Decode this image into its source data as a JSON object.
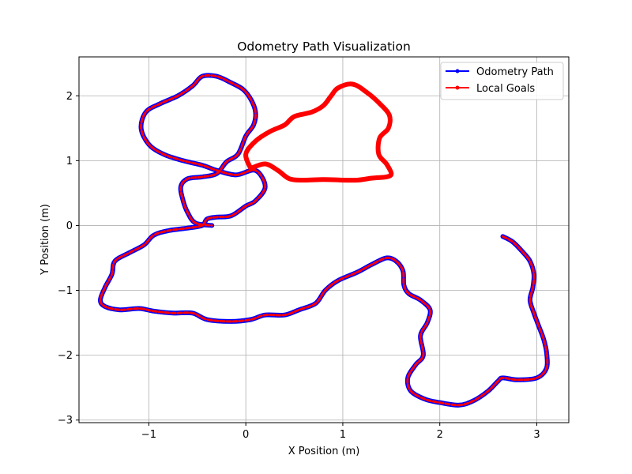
{
  "chart_data": {
    "type": "line",
    "title": "Odometry Path Visualization",
    "xlabel": "X Position (m)",
    "ylabel": "Y Position (m)",
    "xlim": [
      -1.72,
      3.33
    ],
    "ylim": [
      -3.04,
      2.6
    ],
    "xticks": [
      -1,
      0,
      1,
      2,
      3
    ],
    "yticks": [
      -3,
      -2,
      -1,
      0,
      1,
      2
    ],
    "xtick_labels": [
      "−1",
      "0",
      "1",
      "2",
      "3"
    ],
    "ytick_labels": [
      "−3",
      "−2",
      "−1",
      "0",
      "1",
      "2"
    ],
    "grid": true,
    "legend_position": "top-right",
    "series": [
      {
        "name": "Odometry Path",
        "color": "#0000ff",
        "marker": "dot",
        "points": [
          [
            2.65,
            -0.17
          ],
          [
            2.75,
            -0.25
          ],
          [
            2.85,
            -0.4
          ],
          [
            2.93,
            -0.55
          ],
          [
            2.97,
            -0.75
          ],
          [
            2.96,
            -0.95
          ],
          [
            2.93,
            -1.15
          ],
          [
            2.97,
            -1.35
          ],
          [
            3.02,
            -1.55
          ],
          [
            3.07,
            -1.75
          ],
          [
            3.1,
            -1.95
          ],
          [
            3.1,
            -2.2
          ],
          [
            3.0,
            -2.35
          ],
          [
            2.8,
            -2.38
          ],
          [
            2.65,
            -2.35
          ],
          [
            2.6,
            -2.4
          ],
          [
            2.5,
            -2.55
          ],
          [
            2.35,
            -2.7
          ],
          [
            2.2,
            -2.77
          ],
          [
            2.0,
            -2.73
          ],
          [
            1.85,
            -2.68
          ],
          [
            1.7,
            -2.55
          ],
          [
            1.67,
            -2.35
          ],
          [
            1.75,
            -2.15
          ],
          [
            1.83,
            -2.0
          ],
          [
            1.8,
            -1.7
          ],
          [
            1.87,
            -1.5
          ],
          [
            1.9,
            -1.3
          ],
          [
            1.8,
            -1.15
          ],
          [
            1.68,
            -1.05
          ],
          [
            1.63,
            -0.92
          ],
          [
            1.62,
            -0.7
          ],
          [
            1.55,
            -0.55
          ],
          [
            1.45,
            -0.5
          ],
          [
            1.3,
            -0.6
          ],
          [
            1.15,
            -0.72
          ],
          [
            0.95,
            -0.85
          ],
          [
            0.82,
            -1.0
          ],
          [
            0.72,
            -1.2
          ],
          [
            0.55,
            -1.3
          ],
          [
            0.4,
            -1.38
          ],
          [
            0.2,
            -1.38
          ],
          [
            0.05,
            -1.45
          ],
          [
            -0.15,
            -1.48
          ],
          [
            -0.4,
            -1.45
          ],
          [
            -0.55,
            -1.35
          ],
          [
            -0.75,
            -1.35
          ],
          [
            -0.95,
            -1.32
          ],
          [
            -1.1,
            -1.28
          ],
          [
            -1.3,
            -1.3
          ],
          [
            -1.45,
            -1.25
          ],
          [
            -1.5,
            -1.15
          ],
          [
            -1.45,
            -0.95
          ],
          [
            -1.38,
            -0.75
          ],
          [
            -1.35,
            -0.55
          ],
          [
            -1.2,
            -0.42
          ],
          [
            -1.05,
            -0.3
          ],
          [
            -0.95,
            -0.15
          ],
          [
            -0.8,
            -0.08
          ],
          [
            -0.6,
            -0.04
          ],
          [
            -0.45,
            0.0
          ],
          [
            -0.4,
            0.1
          ],
          [
            -0.3,
            0.13
          ],
          [
            -0.15,
            0.15
          ],
          [
            0.0,
            0.3
          ],
          [
            0.1,
            0.38
          ],
          [
            0.2,
            0.6
          ],
          [
            0.1,
            0.85
          ],
          [
            -0.1,
            0.78
          ],
          [
            -0.3,
            0.85
          ],
          [
            -0.45,
            0.93
          ],
          [
            -0.65,
            1.0
          ],
          [
            -0.85,
            1.1
          ],
          [
            -1.0,
            1.25
          ],
          [
            -1.08,
            1.5
          ],
          [
            -1.03,
            1.75
          ],
          [
            -0.88,
            1.88
          ],
          [
            -0.7,
            2.0
          ],
          [
            -0.55,
            2.15
          ],
          [
            -0.45,
            2.3
          ],
          [
            -0.3,
            2.3
          ],
          [
            -0.15,
            2.2
          ],
          [
            -0.03,
            2.1
          ],
          [
            0.05,
            1.95
          ],
          [
            0.1,
            1.75
          ],
          [
            0.08,
            1.55
          ],
          [
            0.0,
            1.38
          ],
          [
            -0.08,
            1.1
          ],
          [
            -0.2,
            0.98
          ],
          [
            -0.3,
            0.8
          ],
          [
            -0.45,
            0.75
          ],
          [
            -0.6,
            0.72
          ],
          [
            -0.67,
            0.6
          ],
          [
            -0.65,
            0.4
          ],
          [
            -0.6,
            0.2
          ],
          [
            -0.52,
            0.04
          ],
          [
            -0.35,
            0.0
          ]
        ]
      },
      {
        "name": "Local Goals",
        "color": "#ff0000",
        "marker": "dot",
        "points": [
          [
            0.05,
            0.88
          ],
          [
            0.2,
            0.95
          ],
          [
            0.33,
            0.85
          ],
          [
            0.45,
            0.72
          ],
          [
            0.6,
            0.7
          ],
          [
            0.8,
            0.71
          ],
          [
            1.0,
            0.7
          ],
          [
            1.15,
            0.7
          ],
          [
            1.3,
            0.73
          ],
          [
            1.45,
            0.75
          ],
          [
            1.5,
            0.8
          ],
          [
            1.45,
            0.95
          ],
          [
            1.37,
            1.1
          ],
          [
            1.38,
            1.35
          ],
          [
            1.47,
            1.5
          ],
          [
            1.48,
            1.7
          ],
          [
            1.38,
            1.88
          ],
          [
            1.25,
            2.05
          ],
          [
            1.1,
            2.18
          ],
          [
            0.95,
            2.12
          ],
          [
            0.88,
            2.0
          ],
          [
            0.8,
            1.85
          ],
          [
            0.68,
            1.75
          ],
          [
            0.5,
            1.68
          ],
          [
            0.4,
            1.55
          ],
          [
            0.25,
            1.45
          ],
          [
            0.1,
            1.3
          ],
          [
            0.0,
            1.1
          ],
          [
            0.05,
            0.88
          ]
        ]
      }
    ]
  }
}
